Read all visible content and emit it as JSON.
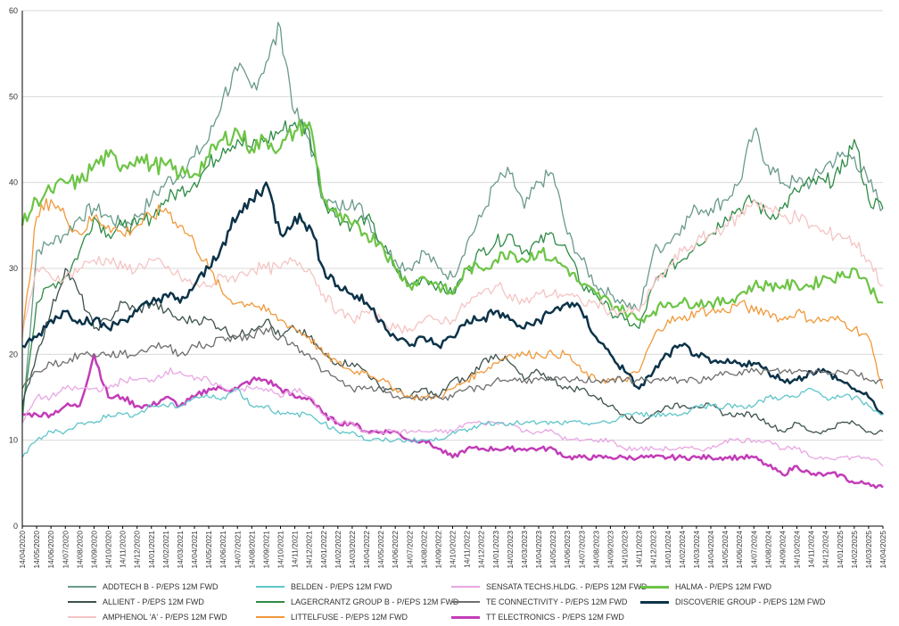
{
  "chart_data": {
    "type": "line",
    "title": "",
    "xlabel": "",
    "ylabel": "",
    "ylim": [
      0,
      60
    ],
    "yticks": [
      0,
      10,
      20,
      30,
      40,
      50,
      60
    ],
    "grid": "horizontal",
    "legend_position": "bottom",
    "x_start": "14/04/2020",
    "x_ticks": [
      "14/04/2020",
      "14/05/2020",
      "14/06/2020",
      "14/07/2020",
      "14/08/2020",
      "14/09/2020",
      "14/10/2020",
      "14/11/2020",
      "14/12/2020",
      "14/01/2021",
      "14/02/2021",
      "14/03/2021",
      "14/04/2021",
      "14/05/2021",
      "14/06/2021",
      "14/07/2021",
      "14/08/2021",
      "14/09/2021",
      "14/10/2021",
      "14/11/2021",
      "14/12/2021",
      "14/01/2022",
      "14/02/2022",
      "14/03/2022",
      "14/04/2022",
      "14/05/2022",
      "14/06/2022",
      "14/07/2022",
      "14/08/2022",
      "14/09/2022",
      "14/10/2022",
      "14/11/2022",
      "14/12/2022",
      "14/01/2023",
      "14/02/2023",
      "14/03/2023",
      "14/04/2023",
      "14/05/2023",
      "14/06/2023",
      "14/07/2023",
      "14/08/2023",
      "14/09/2023",
      "14/10/2023",
      "14/11/2023",
      "14/12/2023",
      "14/01/2024",
      "14/02/2024",
      "14/03/2024",
      "14/04/2024",
      "14/05/2024",
      "14/06/2024",
      "14/07/2024",
      "14/08/2024",
      "14/09/2024",
      "14/10/2024",
      "14/11/2024",
      "14/12/2024",
      "14/01/2025",
      "14/02/2025",
      "14/03/2025",
      "14/04/2025"
    ],
    "series": [
      {
        "name": "ADDTECH B - P/EPS 12M FWD",
        "color": "#6a9a8c",
        "width": 1.3,
        "values": [
          12,
          32,
          33,
          34,
          36,
          37,
          36,
          35,
          36,
          38,
          40,
          41,
          43,
          45,
          50,
          53,
          51,
          54,
          58,
          48,
          45,
          38,
          37,
          38,
          36,
          33,
          31,
          30,
          32,
          30,
          29,
          33,
          36,
          40,
          41,
          37,
          40,
          41,
          34,
          31,
          28,
          27,
          26,
          25,
          32,
          33,
          35,
          37,
          37,
          38,
          40,
          46,
          42,
          40,
          40,
          40,
          42,
          43,
          43,
          40,
          37
        ]
      },
      {
        "name": "LAGERCRANTZ GROUP B - P/EPS 12M FWD",
        "color": "#2e8b45",
        "width": 1.3,
        "values": [
          13,
          26,
          28,
          29,
          32,
          36,
          34,
          35,
          35,
          36,
          38,
          39,
          40,
          42,
          44,
          45,
          44,
          45,
          46,
          47,
          46,
          38,
          36,
          35,
          36,
          33,
          30,
          28,
          29,
          28,
          27,
          30,
          32,
          33,
          34,
          32,
          33,
          34,
          32,
          28,
          27,
          25,
          24,
          23,
          28,
          30,
          31,
          33,
          34,
          36,
          37,
          38,
          36,
          37,
          39,
          40,
          40,
          41,
          45,
          38,
          37
        ]
      },
      {
        "name": "TT ELECTRONICS - P/EPS 12M FWD",
        "color": "#c23cb8",
        "width": 2.5,
        "values": [
          13,
          13,
          13,
          14,
          14,
          20,
          15,
          15,
          14,
          14,
          15,
          14,
          15,
          16,
          16,
          16,
          17,
          17,
          16,
          15,
          15,
          13,
          12,
          12,
          11,
          11,
          11,
          10,
          10,
          9,
          8,
          9,
          9,
          9,
          9,
          9,
          9,
          9,
          8,
          8,
          8,
          8,
          8,
          8,
          8,
          8,
          8,
          8,
          8,
          8,
          8,
          8,
          7,
          6,
          7,
          6,
          6,
          6,
          5,
          5,
          4.5
        ]
      },
      {
        "name": "ALLIENT - P/EPS 12M FWD",
        "color": "#3d524d",
        "width": 1.3,
        "values": [
          14,
          20,
          25,
          30,
          27,
          23,
          24,
          26,
          25,
          26,
          25,
          24,
          24,
          24,
          23,
          22,
          23,
          24,
          22,
          23,
          22,
          20,
          19,
          19,
          18,
          16,
          16,
          15,
          16,
          15,
          17,
          17,
          19,
          20,
          19,
          17,
          18,
          17,
          16,
          16,
          15,
          14,
          13,
          12,
          13,
          14,
          14,
          14,
          14,
          13,
          13,
          13,
          12,
          11,
          12,
          11,
          11,
          12,
          12,
          11,
          11
        ]
      },
      {
        "name": "LITTELFUSE - P/EPS 12M FWD",
        "color": "#f0993a",
        "width": 1.3,
        "values": [
          22,
          36,
          38,
          36,
          34,
          36,
          35,
          34,
          35,
          36,
          37,
          35,
          33,
          30,
          27,
          26,
          26,
          25,
          24,
          23,
          22,
          20,
          19,
          18,
          18,
          17,
          16,
          15,
          15,
          15,
          16,
          17,
          18,
          19,
          20,
          20,
          20,
          20,
          20,
          18,
          17,
          17,
          17,
          18,
          22,
          24,
          24,
          25,
          25,
          25,
          26,
          25,
          25,
          24,
          25,
          24,
          24,
          24,
          23,
          22,
          16
        ]
      },
      {
        "name": "HALMA - P/EPS 12M FWD",
        "color": "#6cc445",
        "width": 2.2,
        "values": [
          35,
          38,
          39,
          40,
          40,
          42,
          43,
          42,
          43,
          42,
          42,
          41,
          41,
          43,
          45,
          46,
          44,
          45,
          44,
          46,
          47,
          38,
          36,
          35,
          34,
          33,
          30,
          28,
          29,
          28,
          27,
          30,
          30,
          31,
          32,
          31,
          32,
          31,
          30,
          28,
          27,
          26,
          25,
          24,
          25,
          26,
          26,
          26,
          26,
          26,
          27,
          28,
          28,
          28,
          28,
          28,
          29,
          29,
          30,
          28,
          26
        ]
      },
      {
        "name": "AMPHENOL 'A' - P/EPS 12M FWD",
        "color": "#f5c4c4",
        "width": 1.3,
        "values": [
          22,
          30,
          29,
          29,
          30,
          31,
          31,
          30,
          30,
          31,
          30,
          29,
          28,
          28,
          29,
          29,
          30,
          30,
          30,
          31,
          30,
          27,
          25,
          24,
          25,
          24,
          23,
          23,
          24,
          24,
          24,
          26,
          27,
          28,
          27,
          26,
          27,
          27,
          27,
          26,
          26,
          25,
          25,
          25,
          28,
          30,
          32,
          33,
          34,
          35,
          36,
          38,
          37,
          36,
          36,
          35,
          34,
          34,
          33,
          31,
          28
        ]
      },
      {
        "name": "SENSATA TECHS.HLDG. - P/EPS 12M FWD",
        "color": "#e9a7e4",
        "width": 1.3,
        "values": [
          12,
          15,
          15,
          16,
          16,
          16,
          16,
          17,
          17,
          17,
          18,
          18,
          17,
          17,
          16,
          16,
          16,
          16,
          15,
          16,
          15,
          13,
          12,
          12,
          11,
          11,
          11,
          11,
          11,
          11,
          11,
          12,
          12,
          12,
          12,
          11,
          11,
          11,
          10,
          10,
          10,
          10,
          9,
          9,
          9,
          9,
          9,
          9,
          9,
          10,
          10,
          10,
          10,
          9,
          9,
          8,
          8,
          8,
          8,
          8,
          7
        ]
      },
      {
        "name": "DISCOVERIE GROUP - P/EPS 12M FWD",
        "color": "#0c3349",
        "width": 2.5,
        "values": [
          21,
          22,
          24,
          25,
          24,
          24,
          23,
          24,
          25,
          26,
          27,
          26,
          28,
          30,
          33,
          36,
          38,
          40,
          34,
          36,
          35,
          30,
          28,
          27,
          26,
          24,
          22,
          21,
          22,
          21,
          22,
          24,
          24,
          25,
          24,
          23,
          24,
          25,
          26,
          25,
          22,
          20,
          18,
          16,
          18,
          20,
          21,
          20,
          19,
          19,
          19,
          19,
          18,
          17,
          17,
          18,
          18,
          17,
          16,
          15,
          13
        ]
      },
      {
        "name": "BELDEN - P/EPS 12M FWD",
        "color": "#5ec5c9",
        "width": 1.3,
        "values": [
          8,
          10,
          11,
          11,
          12,
          12,
          13,
          13,
          13,
          14,
          14,
          14,
          15,
          15,
          15,
          16,
          14,
          14,
          13,
          13,
          13,
          12,
          11,
          11,
          10,
          10,
          10,
          10,
          10,
          10,
          11,
          11,
          12,
          12,
          12,
          12,
          12,
          12,
          12,
          12,
          12,
          12,
          13,
          13,
          13,
          13,
          13,
          14,
          14,
          14,
          14,
          14,
          15,
          15,
          15,
          16,
          15,
          15,
          15,
          14,
          13
        ]
      },
      {
        "name": "TE CONNECTIVITY - P/EPS 12M FWD",
        "color": "#6e6e6e",
        "width": 1.3,
        "values": [
          16,
          18,
          19,
          19,
          20,
          20,
          20,
          20,
          20,
          21,
          21,
          20,
          21,
          21,
          22,
          22,
          22,
          23,
          22,
          21,
          20,
          18,
          17,
          16,
          16,
          16,
          15,
          15,
          15,
          15,
          15,
          16,
          16,
          17,
          17,
          17,
          17,
          17,
          17,
          17,
          17,
          17,
          17,
          17,
          17,
          17,
          17,
          17,
          17,
          18,
          18,
          18,
          18,
          18,
          18,
          18,
          18,
          18,
          18,
          17,
          17
        ]
      }
    ],
    "legend_order": [
      0,
      3,
      6,
      9,
      1,
      4,
      7,
      10,
      2,
      5,
      8
    ]
  }
}
